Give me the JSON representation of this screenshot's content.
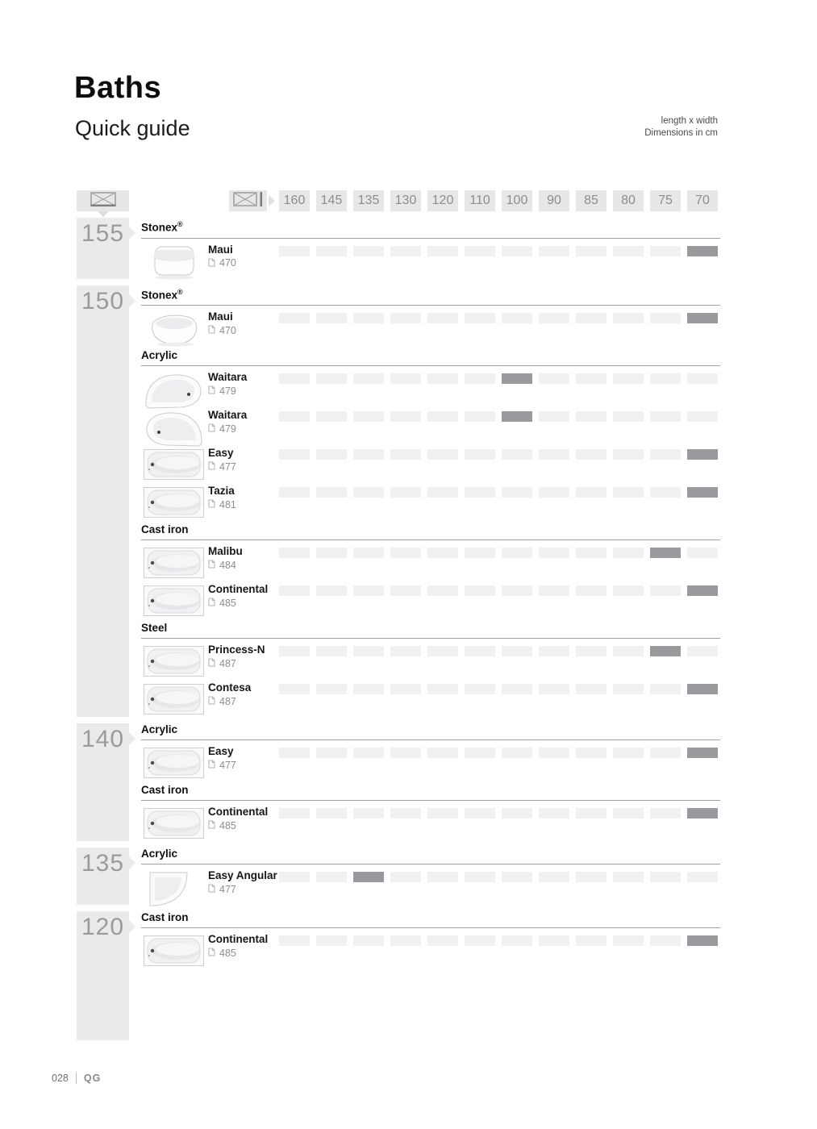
{
  "page": {
    "title": "Baths",
    "subtitle": "Quick guide",
    "dimensions_note_line1": "length x width",
    "dimensions_note_line2": "Dimensions in cm",
    "footer": {
      "page_number": "028",
      "section_code": "QG"
    }
  },
  "icons": {
    "length_axis": "bath-top-view-icon",
    "width_axis": "bath-top-view-width-icon",
    "page_reference": "page-icon"
  },
  "colors": {
    "header_box": "#e7e7e7",
    "length_block": "#eaeaea",
    "cell": "#f1f1f1",
    "highlight_cell": "#9a9a9e",
    "muted_text": "#8d8d8d"
  },
  "matrix": {
    "columns": [
      "160",
      "145",
      "135",
      "130",
      "120",
      "110",
      "100",
      "90",
      "85",
      "80",
      "75",
      "70"
    ],
    "length_groups": [
      {
        "length": "155",
        "sections": [
          {
            "material": "Stonex®",
            "products": [
              {
                "name": "Maui",
                "page": "470",
                "image": "freestanding-rect",
                "highlight": "70"
              }
            ]
          }
        ]
      },
      {
        "length": "150",
        "sections": [
          {
            "material": "Stonex®",
            "products": [
              {
                "name": "Maui",
                "page": "470",
                "image": "freestanding-oval",
                "highlight": "70"
              }
            ]
          },
          {
            "material": "Acrylic",
            "products": [
              {
                "name": "Waitara",
                "page": "479",
                "image": "corner-bath-left",
                "highlight": "100"
              },
              {
                "name": "Waitara",
                "page": "479",
                "image": "corner-bath-right",
                "highlight": "100"
              },
              {
                "name": "Easy",
                "page": "477",
                "image": "rect-bath",
                "highlight": "70"
              },
              {
                "name": "Tazia",
                "page": "481",
                "image": "rect-bath",
                "highlight": "70"
              }
            ]
          },
          {
            "material": "Cast iron",
            "products": [
              {
                "name": "Malibu",
                "page": "484",
                "image": "rect-bath",
                "highlight": "75"
              },
              {
                "name": "Continental",
                "page": "485",
                "image": "rect-bath",
                "highlight": "70"
              }
            ]
          },
          {
            "material": "Steel",
            "products": [
              {
                "name": "Princess-N",
                "page": "487",
                "image": "rect-bath",
                "highlight": "75"
              },
              {
                "name": "Contesa",
                "page": "487",
                "image": "rect-bath",
                "highlight": "70"
              }
            ]
          }
        ]
      },
      {
        "length": "140",
        "sections": [
          {
            "material": "Acrylic",
            "products": [
              {
                "name": "Easy",
                "page": "477",
                "image": "rect-bath",
                "highlight": "70"
              }
            ]
          },
          {
            "material": "Cast iron",
            "products": [
              {
                "name": "Continental",
                "page": "485",
                "image": "rect-bath",
                "highlight": "70"
              }
            ]
          }
        ]
      },
      {
        "length": "135",
        "sections": [
          {
            "material": "Acrylic",
            "products": [
              {
                "name": "Easy Angular",
                "page": "477",
                "image": "corner-bath-quarter",
                "highlight": "135"
              }
            ]
          }
        ]
      },
      {
        "length": "120",
        "sections": [
          {
            "material": "Cast iron",
            "products": [
              {
                "name": "Continental",
                "page": "485",
                "image": "rect-bath",
                "highlight": "70"
              }
            ]
          }
        ]
      }
    ]
  }
}
